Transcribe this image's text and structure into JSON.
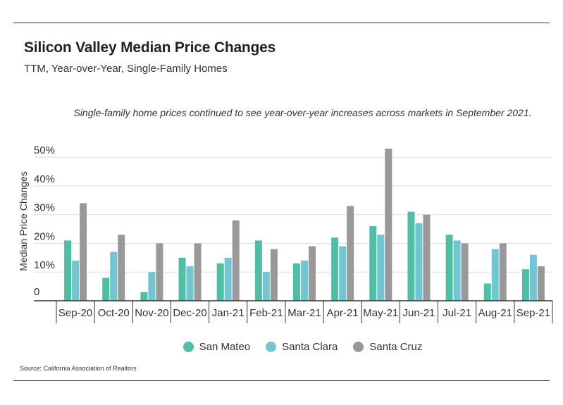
{
  "colors": {
    "san_mateo": "#4dbfa3",
    "santa_clara": "#72c6d2",
    "santa_cruz": "#999999"
  },
  "source": "Source:  California Association of Realtors",
  "chart_data": {
    "type": "bar",
    "title": "Silicon Valley Median Price Changes",
    "subtitle": "TTM, Year-over-Year, Single-Family Homes",
    "caption": "Single-family home prices continued to see year-over-year increases across markets in September 2021.",
    "xlabel": "",
    "ylabel": "Median Price Changes",
    "ylim": [
      0,
      53
    ],
    "yticks": [
      0,
      10,
      20,
      30,
      40,
      50
    ],
    "ytick_labels": [
      "0",
      "10%",
      "20%",
      "30%",
      "40%",
      "50%"
    ],
    "grid": true,
    "legend_position": "bottom-center",
    "categories": [
      "Sep-20",
      "Oct-20",
      "Nov-20",
      "Dec-20",
      "Jan-21",
      "Feb-21",
      "Mar-21",
      "Apr-21",
      "May-21",
      "Jun-21",
      "Jul-21",
      "Aug-21",
      "Sep-21"
    ],
    "series": [
      {
        "name": "San Mateo",
        "color": "#4dbfa3",
        "values": [
          21,
          8,
          3,
          15,
          13,
          21,
          13,
          22,
          26,
          31,
          23,
          6,
          11
        ]
      },
      {
        "name": "Santa Clara",
        "color": "#72c6d2",
        "values": [
          14,
          17,
          10,
          12,
          15,
          10,
          14,
          19,
          23,
          27,
          21,
          18,
          16
        ]
      },
      {
        "name": "Santa Cruz",
        "color": "#999999",
        "values": [
          34,
          23,
          20,
          20,
          28,
          18,
          19,
          33,
          53,
          30,
          20,
          20,
          12
        ]
      }
    ]
  }
}
